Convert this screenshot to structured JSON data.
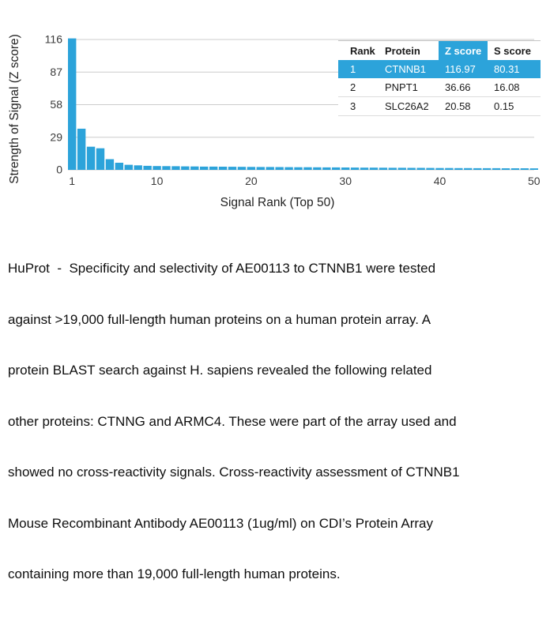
{
  "theme": {
    "accent": "#2ca3da",
    "background": "#ffffff"
  },
  "chart_data": {
    "type": "bar",
    "title": "",
    "xlabel": "Signal Rank (Top 50)",
    "ylabel": "Strength of Signal (Z score)",
    "x": [
      1,
      2,
      3,
      4,
      5,
      6,
      7,
      8,
      9,
      10,
      11,
      12,
      13,
      14,
      15,
      16,
      17,
      18,
      19,
      20,
      21,
      22,
      23,
      24,
      25,
      26,
      27,
      28,
      29,
      30,
      31,
      32,
      33,
      34,
      35,
      36,
      37,
      38,
      39,
      40,
      41,
      42,
      43,
      44,
      45,
      46,
      47,
      48,
      49,
      50
    ],
    "values": [
      116.97,
      36.66,
      20.58,
      19.2,
      9.5,
      6.3,
      4.5,
      4.0,
      3.6,
      3.4,
      3.3,
      3.2,
      3.1,
      3.0,
      2.9,
      2.85,
      2.8,
      2.75,
      2.7,
      2.6,
      2.55,
      2.5,
      2.45,
      2.4,
      2.35,
      2.3,
      2.25,
      2.2,
      2.15,
      2.1,
      2.05,
      2.0,
      1.95,
      1.9,
      1.85,
      1.8,
      1.78,
      1.75,
      1.7,
      1.65,
      1.6,
      1.58,
      1.55,
      1.5,
      1.48,
      1.45,
      1.42,
      1.4,
      1.38,
      1.35
    ],
    "ylim": [
      0,
      116
    ],
    "yticks": [
      0,
      29,
      58,
      87,
      116
    ],
    "xticks": [
      1,
      10,
      20,
      30,
      40,
      50
    ],
    "grid": "horizontal",
    "legend": "none",
    "bar_color": "#2ca3da",
    "grid_color": "#cccccc",
    "axis_text_color": "#3b3b3b",
    "axis_title_color": "#222222"
  },
  "table": {
    "headers": [
      "Rank",
      "Protein",
      "Z score",
      "S score"
    ],
    "rows": [
      {
        "rank": "1",
        "protein": "CTNNB1",
        "z": "116.97",
        "s": "80.31"
      },
      {
        "rank": "2",
        "protein": "PNPT1",
        "z": "36.66",
        "s": "16.08"
      },
      {
        "rank": "3",
        "protein": "SLC26A2",
        "z": "20.58",
        "s": "0.15"
      }
    ],
    "highlighted_rank": "1",
    "highlight_color": "#2ca3da"
  },
  "description": {
    "lines": [
      "HuProt  -  Specificity and selectivity of AE00113 to CTNNB1 were tested",
      "against >19,000 full-length human proteins on a human protein array. A",
      "protein BLAST search against H. sapiens revealed the following related",
      "other proteins: CTNNG and ARMC4. These were part of the array used and",
      "showed no cross-reactivity signals. Cross-reactivity assessment of CTNNB1",
      "Mouse Recombinant Antibody AE00113 (1ug/ml) on CDI’s Protein Array",
      "containing more than 19,000 full-length human proteins."
    ]
  }
}
